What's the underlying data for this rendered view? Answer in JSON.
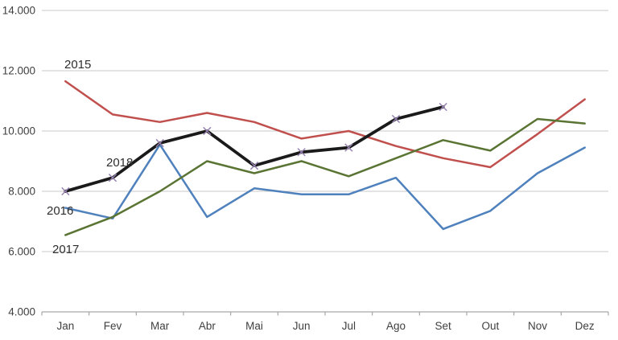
{
  "chart_data": {
    "type": "line",
    "title": "",
    "xlabel": "",
    "ylabel": "",
    "categories": [
      "Jan",
      "Fev",
      "Mar",
      "Abr",
      "Mai",
      "Jun",
      "Jul",
      "Ago",
      "Set",
      "Out",
      "Nov",
      "Dez"
    ],
    "y_axis": {
      "min": 4000,
      "max": 14000,
      "step": 2000,
      "tick_labels": [
        "4.000",
        "6.000",
        "8.000",
        "10.000",
        "12.000",
        "14.000"
      ]
    },
    "grid": "horizontal",
    "legend_position": "inline-series-labels",
    "series": [
      {
        "name": "2015",
        "color": "#C0504D",
        "marker": "none",
        "values": [
          11650,
          10550,
          10300,
          10600,
          10300,
          9750,
          10000,
          9500,
          9100,
          8800,
          9900,
          11050
        ]
      },
      {
        "name": "2016",
        "color": "#4F81BD",
        "marker": "none",
        "values": [
          7450,
          7100,
          9550,
          7150,
          8100,
          7900,
          7900,
          8450,
          6750,
          7350,
          8600,
          9450
        ]
      },
      {
        "name": "2017",
        "color": "#5A7434",
        "marker": "none",
        "values": [
          6550,
          7150,
          8000,
          9000,
          8600,
          9000,
          8500,
          9100,
          9700,
          9350,
          10400,
          10250
        ]
      },
      {
        "name": "2018",
        "color": "#1A1A1A",
        "marker": "x",
        "marker_color": "#9682AF",
        "values": [
          8000,
          8450,
          9600,
          10000,
          8850,
          9300,
          9450,
          10400,
          10800,
          null,
          null,
          null
        ]
      }
    ]
  },
  "colors": {
    "background": "#FFFFFF",
    "gridline": "#C9C9C9",
    "axis_line": "#A6A6A6",
    "axis_text": "#3F3F3F",
    "series_label_text": "#2E2E2E"
  }
}
